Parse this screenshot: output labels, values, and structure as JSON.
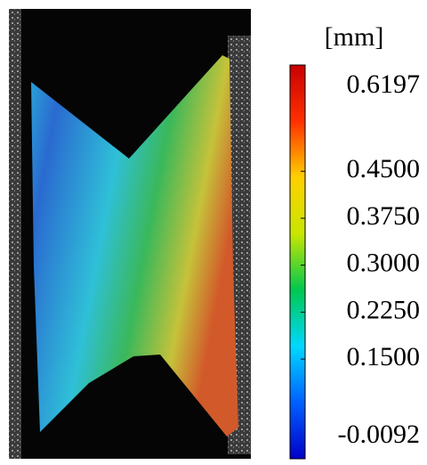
{
  "chart_data": {
    "type": "colormap",
    "colorbar_label": "[mm]",
    "colormap": [
      "#0000c8",
      "#0060ff",
      "#00d8ff",
      "#00c850",
      "#c8e600",
      "#ffd000",
      "#ff3000",
      "#c80000"
    ],
    "clim": [
      -0.0092,
      0.6197
    ],
    "cticks": [
      0.6197,
      {
        "value": 0.45,
        "label": "0.4500"
      },
      {
        "value": 0.375,
        "label": "0.3750"
      },
      {
        "value": 0.3,
        "label": "0.3000"
      },
      {
        "value": 0.225,
        "label": "0.2250"
      },
      {
        "value": 0.15,
        "label": "0.1500"
      },
      -0.0092
    ]
  }
}
